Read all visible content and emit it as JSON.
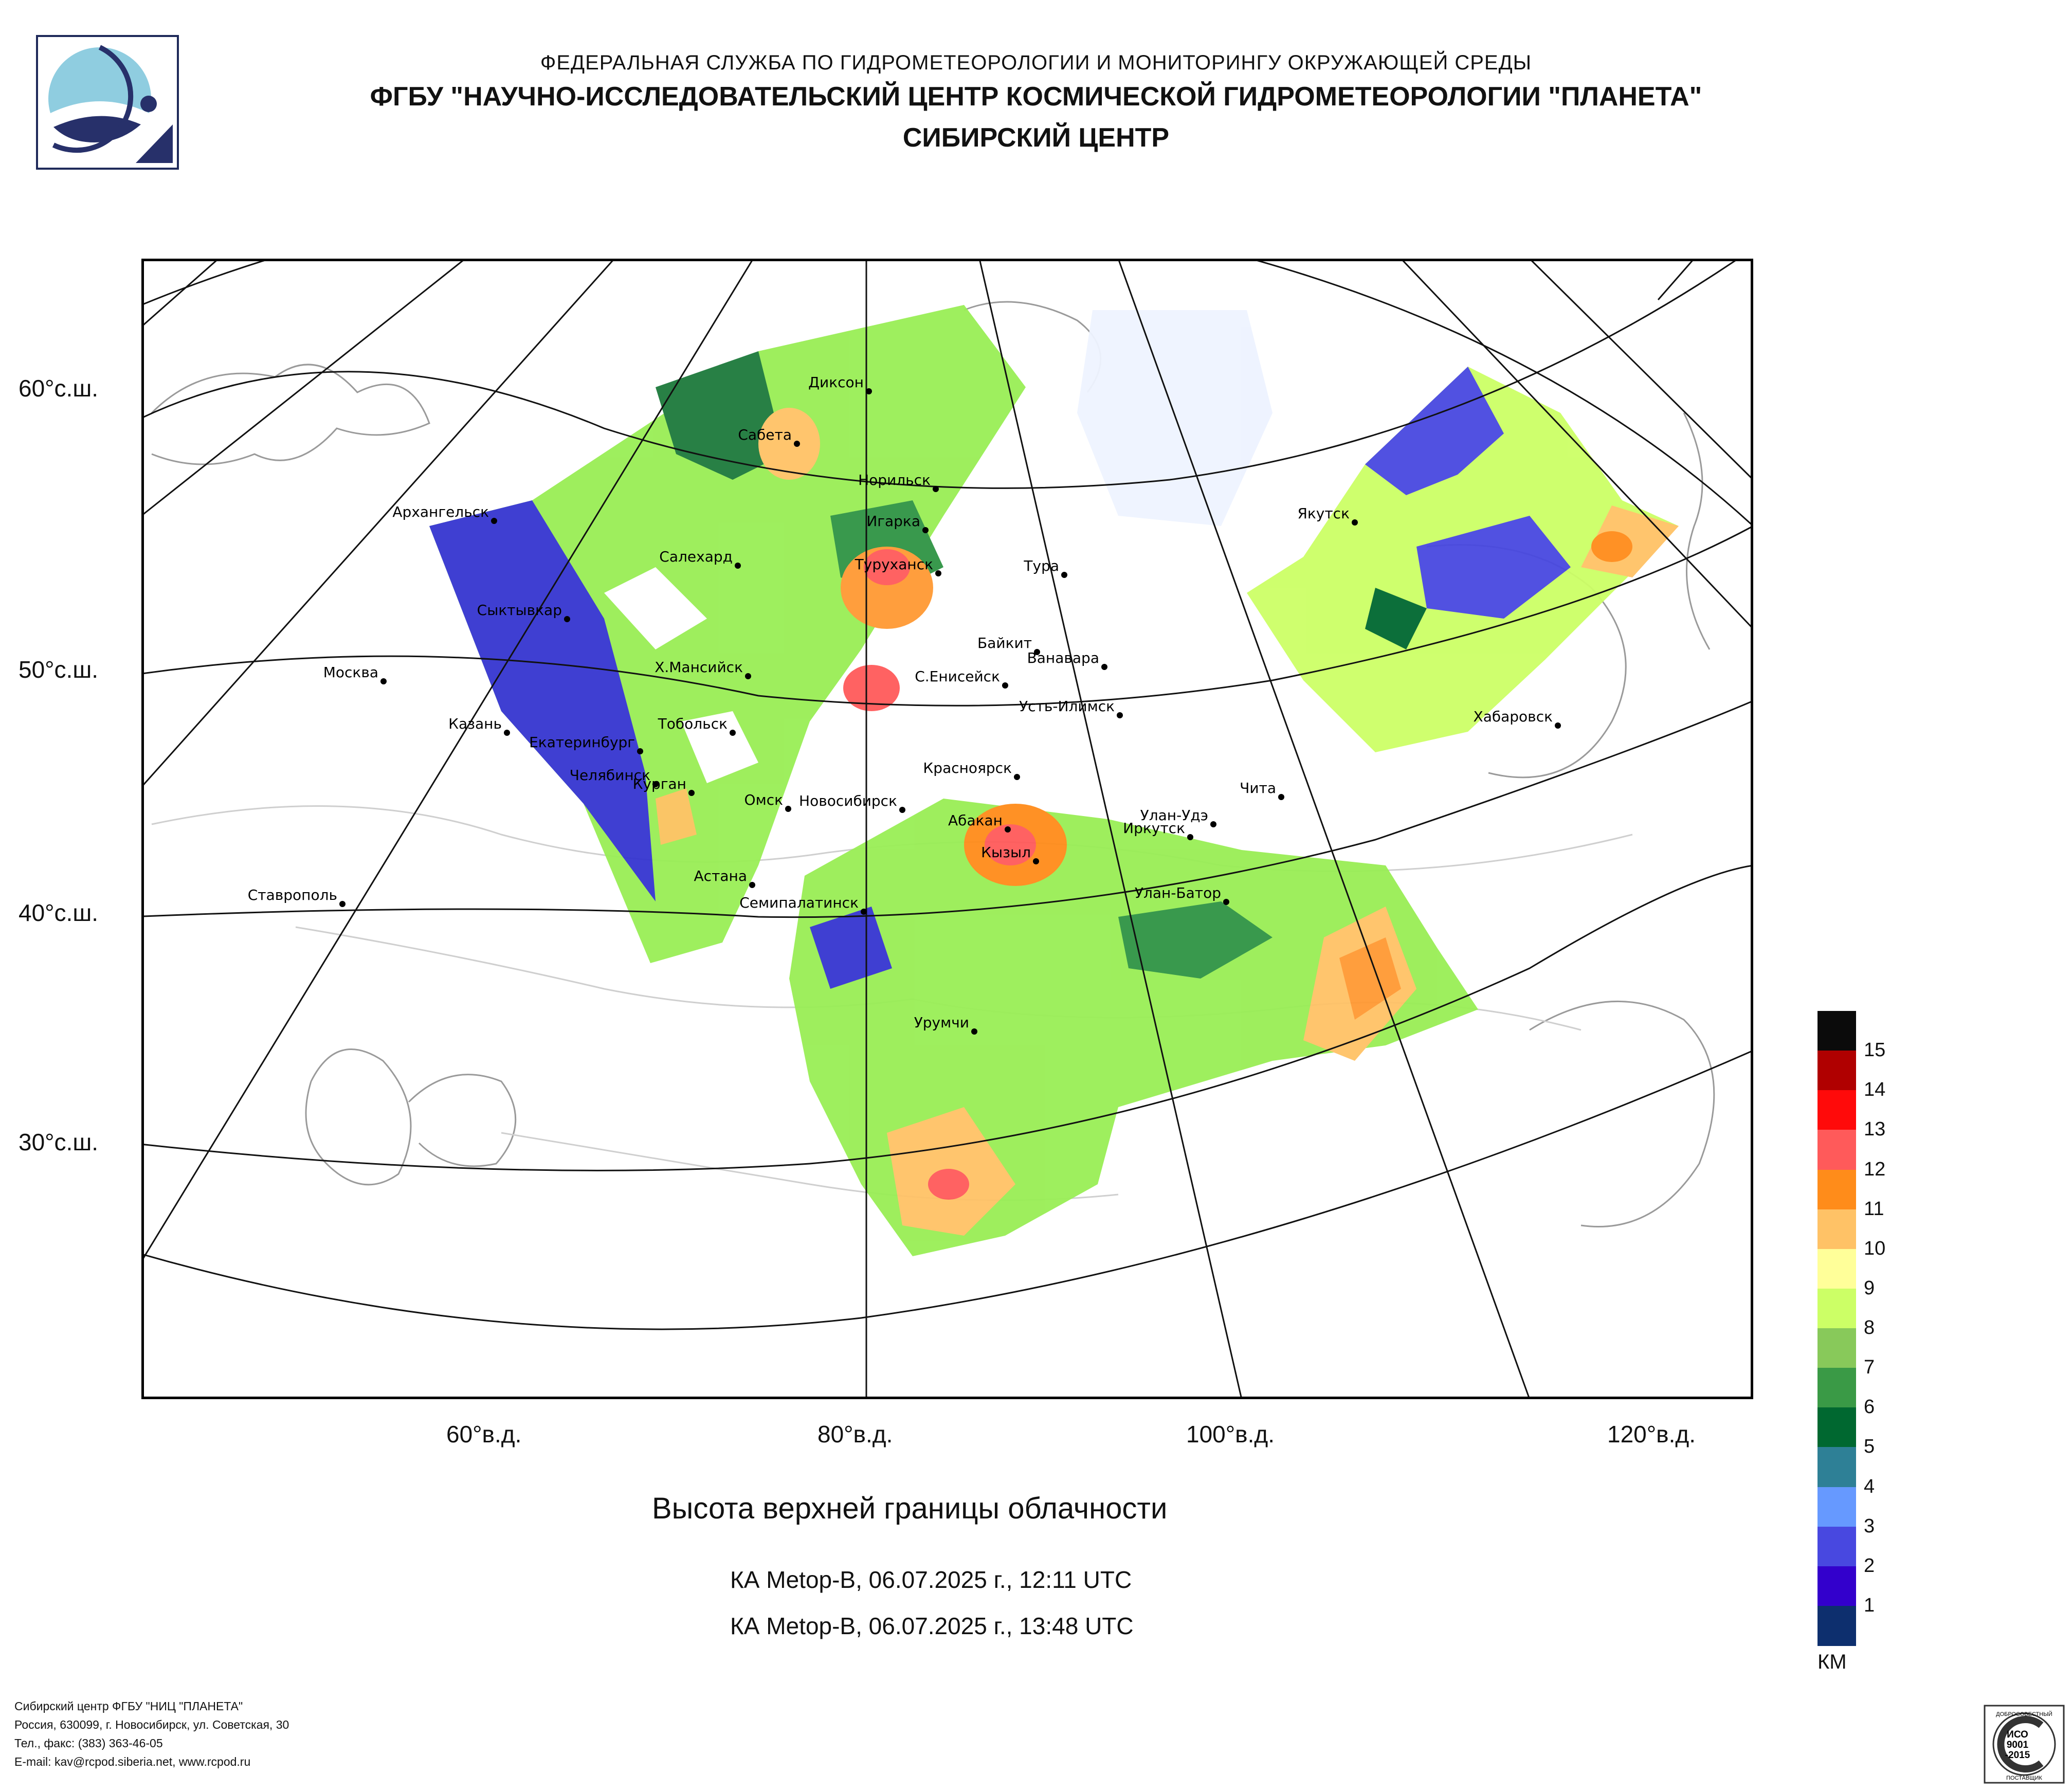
{
  "header": {
    "agency": "ФЕДЕРАЛЬНАЯ СЛУЖБА ПО ГИДРОМЕТЕОРОЛОГИИ И МОНИТОРИНГУ ОКРУЖАЮЩЕЙ СРЕДЫ",
    "org": "ФГБУ \"НАУЧНО-ИССЛЕДОВАТЕЛЬСКИЙ ЦЕНТР КОСМИЧЕСКОЙ ГИДРОМЕТЕОРОЛОГИИ \"ПЛАНЕТА\"",
    "center": "СИБИРСКИЙ ЦЕНТР"
  },
  "map": {
    "lat_labels": [
      "60°с.ш.",
      "50°с.ш.",
      "40°с.ш.",
      "30°с.ш."
    ],
    "lon_labels": [
      "60°в.д.",
      "80°в.д.",
      "100°в.д.",
      "120°в.д."
    ],
    "cities": [
      "Диксон",
      "Сабета",
      "Норильск",
      "Игарка",
      "Туруханск",
      "Тура",
      "Салехард",
      "Якутск",
      "Архангельск",
      "Сыктывкар",
      "Москва",
      "Байкит",
      "Ванавара",
      "Х.Мансийск",
      "С.Енисейск",
      "Усть-Илимск",
      "Казань",
      "Тобольск",
      "Екатеринбург",
      "Хабаровск",
      "Челябинск",
      "Курган",
      "Красноярск",
      "Чита",
      "Омск",
      "Новосибирск",
      "Абакан",
      "Улан-Удэ",
      "Иркутск",
      "Кызыл",
      "Астана",
      "Улан-Батор",
      "Ставрополь",
      "Семипалатинск",
      "Урумчи"
    ]
  },
  "title": "Высота верхней границы облачности",
  "passes": [
    "КА Metop-B, 06.07.2025 г., 12:11 UTC",
    "КА Metop-B, 06.07.2025 г., 13:48 UTC"
  ],
  "legend": {
    "unit": "КМ",
    "levels": [
      {
        "label": "15",
        "color": "#0b0b0b"
      },
      {
        "label": "14",
        "color": "#b00000"
      },
      {
        "label": "13",
        "color": "#ff0a0a"
      },
      {
        "label": "12",
        "color": "#ff5a5a"
      },
      {
        "label": "11",
        "color": "#ff8c1a"
      },
      {
        "label": "10",
        "color": "#ffc266"
      },
      {
        "label": "9",
        "color": "#ffff99"
      },
      {
        "label": "8",
        "color": "#ccff66"
      },
      {
        "label": "7",
        "color": "#88c95a"
      },
      {
        "label": "6",
        "color": "#3a9a46"
      },
      {
        "label": "5",
        "color": "#006830"
      },
      {
        "label": "4",
        "color": "#2e8096"
      },
      {
        "label": "3",
        "color": "#6699ff"
      },
      {
        "label": "2",
        "color": "#4848e0"
      },
      {
        "label": "1",
        "color": "#3300cc"
      },
      {
        "label": "",
        "color": "#0d2f6e"
      }
    ]
  },
  "footer": {
    "line1": "Сибирский центр ФГБУ \"НИЦ \"ПЛАНЕТА\"",
    "line2": "Россия, 630099, г. Новосибирск, ул. Советская, 30",
    "line3": "Тел., факс: (383) 363-46-05",
    "line4": "E-mail: kav@rcpod.siberia.net, www.rcpod.ru"
  },
  "cert": {
    "arc_text": "ДОБРОСОВЕСТНЫЙ",
    "l1": "ИСО",
    "l2": "9001",
    "l3": "-2015",
    "bottom": "ПОСТАВЩИК"
  }
}
